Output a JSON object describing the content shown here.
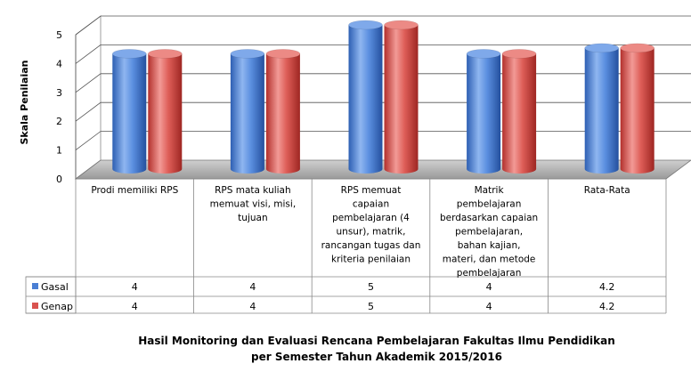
{
  "chart_data": {
    "type": "bar",
    "title": "Hasil Monitoring dan Evaluasi Rencana Pembelajaran Fakultas Ilmu Pendidikan",
    "subtitle": "per Semester Tahun Akademik 2015/2016",
    "ylabel": "Skala Penilaian",
    "xlabel": "",
    "ylim": [
      0,
      5
    ],
    "yticks": [
      "0",
      "1",
      "2",
      "3",
      "4",
      "5"
    ],
    "grid": true,
    "legend": "data-table rows",
    "categories": [
      [
        "Prodi memiliki RPS"
      ],
      [
        "RPS mata kuliah",
        "memuat visi, misi,",
        "tujuan"
      ],
      [
        "RPS memuat",
        "capaian",
        "pembelajaran (4",
        "unsur), matrik,",
        "rancangan tugas dan",
        "kriteria penilaian"
      ],
      [
        "Matrik",
        "pembelajaran",
        "berdasarkan capaian",
        "pembelajaran,",
        "bahan kajian,",
        "materi, dan metode",
        "pembelajaran"
      ],
      [
        "Rata-Rata"
      ]
    ],
    "series": [
      {
        "name": "Gasal",
        "values": [
          4,
          4,
          5,
          4,
          4.2
        ],
        "labels": [
          "4",
          "4",
          "5",
          "4",
          "4.2"
        ],
        "color": "#4a7fd4"
      },
      {
        "name": "Genap",
        "values": [
          4,
          4,
          5,
          4,
          4.2
        ],
        "labels": [
          "4",
          "4",
          "5",
          "4",
          "4.2"
        ],
        "color": "#d9534f"
      }
    ]
  }
}
